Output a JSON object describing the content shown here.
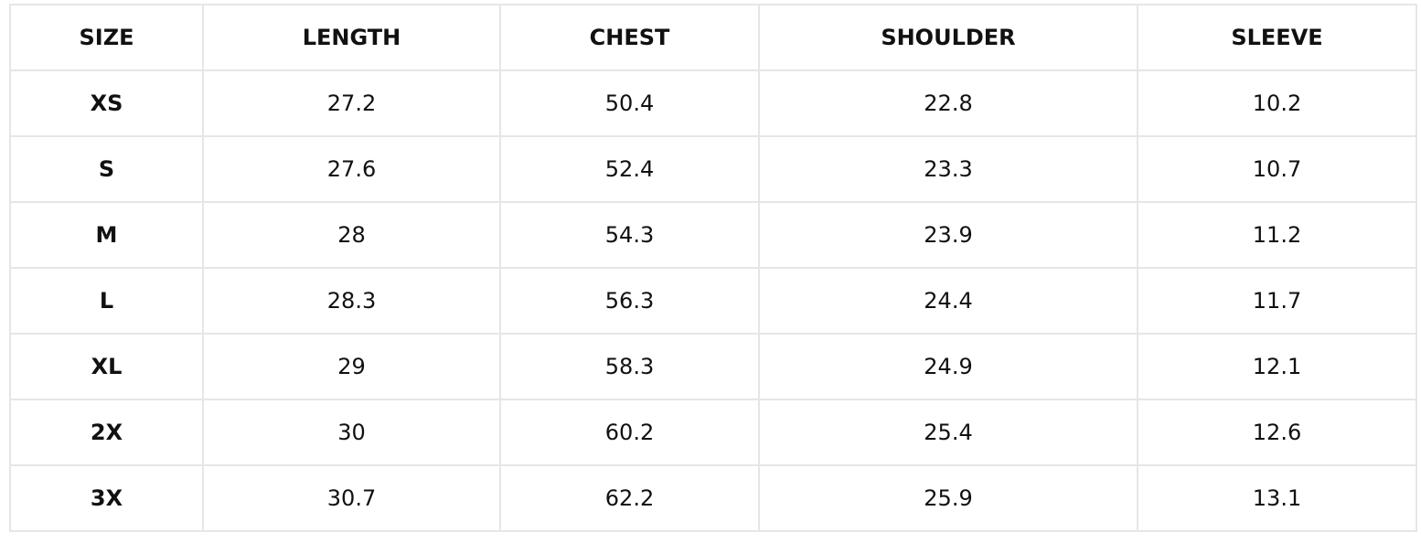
{
  "table": {
    "header": [
      "SIZE",
      "LENGTH",
      "CHEST",
      "SHOULDER",
      "SLEEVE"
    ],
    "rows": [
      [
        "XS",
        27.2,
        50.4,
        22.8,
        10.2
      ],
      [
        "S",
        27.6,
        52.4,
        23.3,
        10.7
      ],
      [
        "M",
        28,
        54.3,
        23.9,
        11.2
      ],
      [
        "L",
        28.3,
        56.3,
        24.4,
        11.7
      ],
      [
        "XL",
        29,
        58.3,
        24.9,
        12.1
      ],
      [
        "2X",
        30,
        60.2,
        25.4,
        12.6
      ],
      [
        "3X",
        30.7,
        62.2,
        25.9,
        13.1
      ]
    ]
  }
}
